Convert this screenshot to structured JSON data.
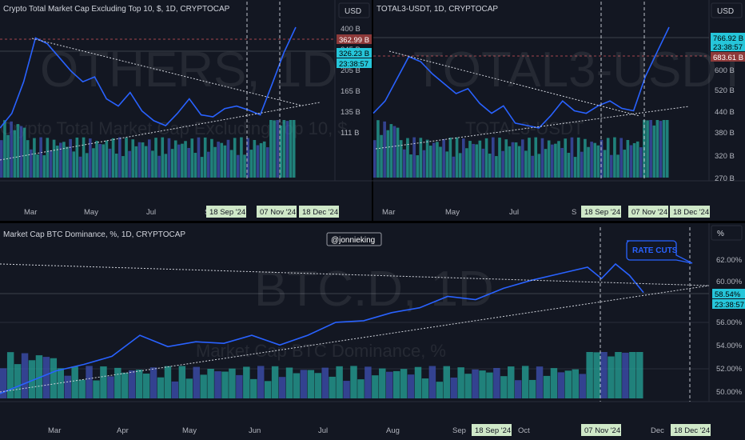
{
  "watermark_handle": "@jonnieking",
  "rate_cuts_label": "RATE CUTS",
  "colors": {
    "price": "#2962ff",
    "vol_a": "#26a69a",
    "vol_b": "#3f51b5",
    "date_badge": "#cfe8c8",
    "price_badge": "#26c6da",
    "red_badge": "#8e3a3a"
  },
  "chart_data": [
    {
      "type": "line",
      "title": "Crypto Total Market Cap Excluding Top 10, $, 1D, CRYPTOCAP",
      "watermark": "OTHERS, 1D",
      "watermark_sub": "Crypto Total Market Cap Excluding Top 10, $",
      "unit": "USD",
      "y_ticks": [
        "400 B",
        "245 B",
        "205 B",
        "165 B",
        "135 B",
        "111 B"
      ],
      "price_badges": [
        "362.99 B",
        "326.23 B",
        "23:38:57"
      ],
      "x_ticks": [
        "Mar",
        "May",
        "Jul",
        "S"
      ],
      "date_badges": [
        "18 Sep '24",
        "07 Nov '24",
        "18 Dec '24"
      ],
      "x": [
        0,
        4,
        8,
        12,
        16,
        20,
        24,
        28,
        32,
        36,
        40,
        44,
        48,
        52,
        56,
        60,
        64,
        68,
        72,
        76,
        80,
        84,
        88,
        92,
        96,
        100
      ],
      "y": [
        145,
        175,
        240,
        330,
        318,
        290,
        262,
        240,
        250,
        205,
        190,
        218,
        180,
        160,
        150,
        175,
        205,
        172,
        168,
        185,
        190,
        182,
        172,
        235,
        300,
        352
      ]
    },
    {
      "type": "line",
      "title": "TOTAL3-USDT, 1D, CRYPTOCAP",
      "watermark": "TOTAL3-USDT, 1D",
      "watermark_sub": "TOTAL3-USDT",
      "unit": "USD",
      "y_ticks": [
        "600 B",
        "520 B",
        "440 B",
        "380 B",
        "320 B",
        "270 B"
      ],
      "price_badges": [
        "766.92 B",
        "23:38:57",
        "683.61 B"
      ],
      "x_ticks": [
        "Mar",
        "May",
        "Jul",
        "S"
      ],
      "date_badges": [
        "18 Sep '24",
        "07 Nov '24",
        "18 Dec '24"
      ],
      "x": [
        0,
        4,
        8,
        12,
        16,
        20,
        24,
        28,
        32,
        36,
        40,
        44,
        48,
        52,
        56,
        60,
        64,
        68,
        72,
        76,
        80,
        84,
        88,
        92,
        96,
        100
      ],
      "y": [
        470,
        520,
        610,
        700,
        680,
        630,
        590,
        550,
        570,
        510,
        470,
        500,
        430,
        420,
        410,
        460,
        520,
        480,
        470,
        500,
        520,
        490,
        480,
        620,
        720,
        820
      ]
    },
    {
      "type": "line",
      "title": "Market Cap BTC Dominance, %, 1D, CRYPTOCAP",
      "watermark": "BTC.D, 1D",
      "watermark_sub": "Market Cap BTC Dominance, %",
      "unit": "%",
      "y_ticks": [
        "62.00%",
        "60.00%",
        "56.00%",
        "54.00%",
        "52.00%",
        "50.00%"
      ],
      "price_badges": [
        "58.54%",
        "23:38:57"
      ],
      "x_ticks": [
        "Mar",
        "Apr",
        "May",
        "Jun",
        "Jul",
        "Aug",
        "Sep",
        "Oct",
        "Dec"
      ],
      "date_badges": [
        "18 Sep '24",
        "07 Nov '24",
        "18 Dec '24"
      ],
      "x": [
        0,
        4,
        8,
        12,
        16,
        20,
        24,
        28,
        32,
        36,
        40,
        44,
        48,
        52,
        56,
        60,
        64,
        68,
        72,
        76,
        80,
        84,
        86,
        88,
        90,
        92
      ],
      "y": [
        52.3,
        53.0,
        53.7,
        54.1,
        54.6,
        55.9,
        55.2,
        55.5,
        55.4,
        55.9,
        55.3,
        55.9,
        56.7,
        56.8,
        57.3,
        57.6,
        58.3,
        58.1,
        58.8,
        59.3,
        59.7,
        60.1,
        59.4,
        60.3,
        59.6,
        58.54
      ]
    }
  ]
}
